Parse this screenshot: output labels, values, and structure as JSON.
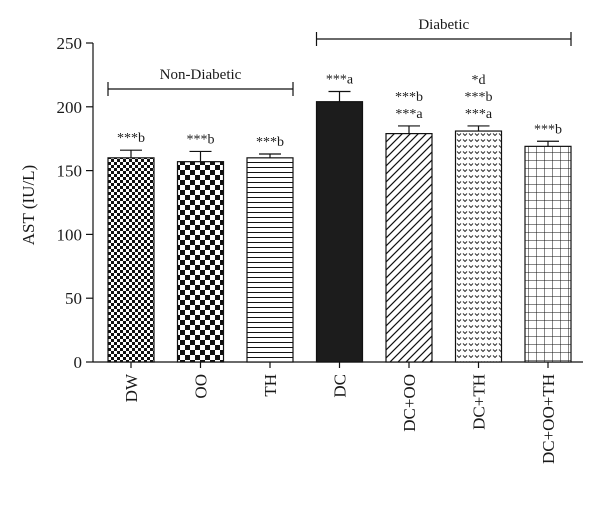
{
  "chart_data": {
    "type": "bar",
    "ylabel": "AST (IU/L)",
    "ylim": [
      0,
      250
    ],
    "yticks": [
      0,
      50,
      100,
      150,
      200,
      250
    ],
    "categories": [
      "DW",
      "OO",
      "TH",
      "DC",
      "DC+OO",
      "DC+TH",
      "DC+OO+TH"
    ],
    "values": [
      160,
      157,
      160,
      204,
      179,
      181,
      169
    ],
    "errors": [
      6,
      8,
      3,
      8,
      6,
      4,
      4
    ],
    "patterns": [
      "checker-fine",
      "checker-coarse",
      "hstripes",
      "solid-black",
      "diagonal",
      "dots",
      "grid"
    ],
    "significance": [
      [
        "***b"
      ],
      [
        "***b"
      ],
      [
        "***b"
      ],
      [
        "***a"
      ],
      [
        "***b",
        "***a"
      ],
      [
        "*d",
        "***b",
        "***a"
      ],
      [
        "***b"
      ]
    ],
    "groups": [
      {
        "label": "Non-Diabetic",
        "from": 0,
        "to": 2
      },
      {
        "label": "Diabetic",
        "from": 3,
        "to": 6
      }
    ],
    "grid": false,
    "legend": "none"
  }
}
